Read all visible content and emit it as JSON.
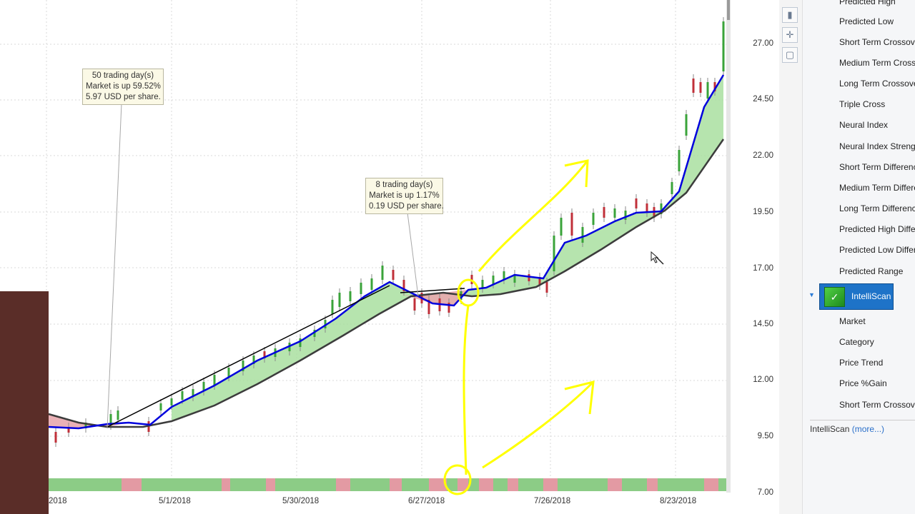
{
  "chart": {
    "y_axis_ticks": [
      "27.00",
      "24.50",
      "22.00",
      "19.50",
      "17.00",
      "14.50",
      "12.00",
      "9.50",
      "7.00"
    ],
    "x_axis_ticks": [
      "2018",
      "5/1/2018",
      "5/30/2018",
      "6/27/2018",
      "7/26/2018",
      "8/23/2018"
    ],
    "annotations": [
      {
        "lines": [
          "50 trading day(s)",
          "Market is up 59.52%",
          "5.97 USD per share."
        ]
      },
      {
        "lines": [
          "8 trading day(s)",
          "Market is up 1.17%",
          "0.19 USD per share."
        ]
      }
    ],
    "colors": {
      "up_candle": "#3aa33a",
      "down_candle": "#c0303a",
      "fast_ma": "#0000dd",
      "slow_ma": "#3c3c3c",
      "fill_bull": "#a9dfa0",
      "fill_bear": "#e8a8ae",
      "highlight": "#ffff00"
    }
  },
  "toolbar": {
    "icons": [
      "candle-icon",
      "crosshair-icon",
      "rectangle-icon"
    ]
  },
  "side_panel": {
    "items_top": [
      "Predicted High",
      "Predicted Low",
      "Short Term Crossover",
      "Medium Term Crossover",
      "Long Term Crossover",
      "Triple Cross",
      "Neural Index",
      "Neural Index Strength",
      "Short Term Difference",
      "Medium Term Difference",
      "Long Term Difference",
      "Predicted High Difference",
      "Predicted Low Difference",
      "Predicted Range"
    ],
    "selected_group": "IntelliScan",
    "items_bottom": [
      "Market",
      "Category",
      "Price Trend",
      "Price %Gain",
      "Short Term Crossover"
    ],
    "footer_label": "IntelliScan",
    "footer_link": "(more...)"
  }
}
